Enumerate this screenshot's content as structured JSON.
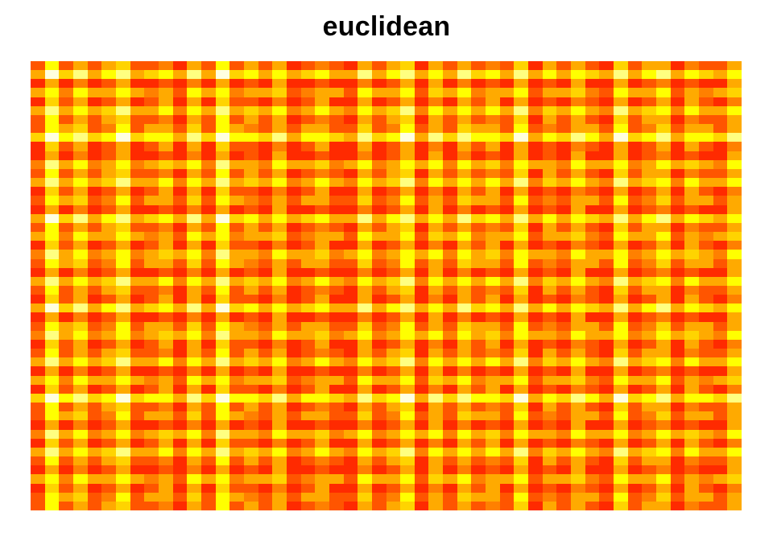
{
  "chart_data": {
    "type": "heatmap",
    "title": "euclidean",
    "xlabel": "",
    "ylabel": "",
    "grid": false,
    "legend": "none",
    "colormap": "heat",
    "colors": [
      "#FF0000",
      "#FF2A00",
      "#FF5500",
      "#FF8000",
      "#FFAA00",
      "#FFD400",
      "#FFFF00",
      "#FFFF80",
      "#FFFFE0"
    ],
    "size": [
      50,
      50
    ],
    "col_scores": [
      1,
      8,
      2,
      6,
      1,
      3,
      7,
      1,
      2,
      4,
      0,
      6,
      1,
      8,
      2,
      3,
      1,
      5,
      0,
      2,
      4,
      1,
      0,
      6,
      1,
      3,
      7,
      0,
      5,
      1,
      6,
      2,
      4,
      1,
      7,
      0,
      3,
      1,
      5,
      2,
      0,
      7,
      1,
      3,
      6,
      0,
      4,
      2,
      1,
      5
    ],
    "row_scores": [
      2,
      7,
      0,
      4,
      1,
      6,
      2,
      3,
      8,
      1,
      0,
      5,
      2,
      6,
      1,
      3,
      0,
      7,
      2,
      4,
      1,
      5,
      3,
      0,
      6,
      2,
      1,
      7,
      0,
      3,
      5,
      1,
      2,
      6,
      0,
      4,
      1,
      8,
      2,
      3,
      0,
      5,
      1,
      6,
      2,
      0,
      4,
      1,
      3,
      2
    ]
  }
}
